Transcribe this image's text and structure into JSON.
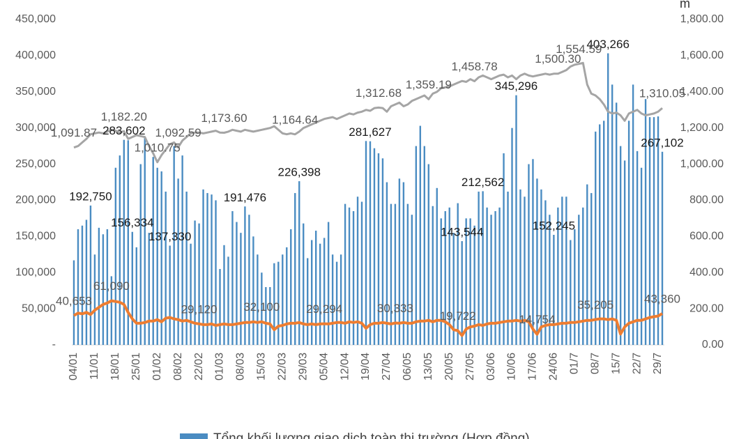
{
  "chart_data": {
    "type": "combo",
    "y2_title": "m",
    "categories": [
      "04/01",
      null,
      null,
      null,
      null,
      "11/01",
      null,
      null,
      null,
      null,
      "18/01",
      null,
      null,
      null,
      null,
      "25/01",
      null,
      null,
      null,
      null,
      "01/02",
      null,
      null,
      null,
      null,
      "08/02",
      null,
      null,
      null,
      null,
      "22/02",
      null,
      null,
      null,
      null,
      "01/03",
      null,
      null,
      null,
      null,
      "08/03",
      null,
      null,
      null,
      null,
      "15/03",
      null,
      null,
      null,
      null,
      "22/03",
      null,
      null,
      null,
      null,
      "29/03",
      null,
      null,
      null,
      null,
      "05/04",
      null,
      null,
      null,
      null,
      "12/04",
      null,
      null,
      null,
      null,
      "19/04",
      null,
      null,
      null,
      null,
      "27/04",
      null,
      null,
      null,
      null,
      "06/05",
      null,
      null,
      null,
      null,
      "13/05",
      null,
      null,
      null,
      null,
      "20/05",
      null,
      null,
      null,
      null,
      "27/05",
      null,
      null,
      null,
      null,
      "03/06",
      null,
      null,
      null,
      null,
      "10/06",
      null,
      null,
      null,
      null,
      "17/06",
      null,
      null,
      null,
      null,
      "24/06",
      null,
      null,
      null,
      null,
      "01/7",
      null,
      null,
      null,
      null,
      "08/7",
      null,
      null,
      null,
      null,
      "15/7",
      null,
      null,
      null,
      null,
      "22/7",
      null,
      null,
      null,
      null,
      "29/7",
      null
    ],
    "series": [
      {
        "name": "Tổng khối lượng giao dịch toàn thị trường (Hợp đồng)",
        "type": "bar",
        "color": "#4a8cc2",
        "values": [
          117000,
          160000,
          165000,
          173000,
          192750,
          125000,
          162000,
          153000,
          160000,
          95000,
          245000,
          262000,
          283602,
          283000,
          156334,
          135000,
          250000,
          288000,
          155000,
          260000,
          245000,
          240000,
          212000,
          137330,
          275000,
          230000,
          262000,
          212000,
          140000,
          172000,
          168000,
          215000,
          210000,
          208000,
          200000,
          105000,
          138000,
          122000,
          185000,
          170000,
          155000,
          191476,
          180000,
          150000,
          125000,
          100000,
          80000,
          80000,
          113000,
          115000,
          125000,
          135000,
          160000,
          210000,
          226398,
          168000,
          120000,
          145000,
          158000,
          140000,
          148000,
          170000,
          125000,
          115000,
          125000,
          195000,
          190000,
          185000,
          205000,
          198000,
          282000,
          281627,
          272000,
          265000,
          258000,
          225000,
          195000,
          195000,
          230000,
          225000,
          195000,
          180000,
          275000,
          303000,
          275000,
          250000,
          192000,
          217000,
          175000,
          185000,
          190000,
          155000,
          196000,
          143544,
          175000,
          175000,
          165000,
          212000,
          212562,
          190000,
          180000,
          185000,
          190000,
          265000,
          212000,
          300000,
          345296,
          215000,
          205000,
          250000,
          257000,
          230000,
          215000,
          200000,
          180000,
          152245,
          190000,
          205000,
          205000,
          145000,
          160000,
          180000,
          190000,
          222000,
          210000,
          295000,
          305000,
          310000,
          403266,
          360000,
          335000,
          275000,
          255000,
          310000,
          360000,
          268000,
          245000,
          340000,
          315000,
          315000,
          316000,
          267102
        ],
        "value_labels": [
          null,
          null,
          null,
          null,
          "192,750",
          null,
          null,
          null,
          null,
          null,
          null,
          null,
          "283,602",
          null,
          "156,334",
          null,
          null,
          null,
          null,
          null,
          null,
          null,
          null,
          "137,330",
          null,
          null,
          null,
          null,
          null,
          null,
          null,
          null,
          null,
          null,
          null,
          null,
          null,
          null,
          null,
          null,
          null,
          "191,476",
          null,
          null,
          null,
          null,
          null,
          null,
          null,
          null,
          null,
          null,
          null,
          null,
          "226,398",
          null,
          null,
          null,
          null,
          null,
          null,
          null,
          null,
          null,
          null,
          null,
          null,
          null,
          null,
          null,
          null,
          "281,627",
          null,
          null,
          null,
          null,
          null,
          null,
          null,
          null,
          null,
          null,
          null,
          null,
          null,
          null,
          null,
          null,
          null,
          null,
          null,
          null,
          null,
          "143,544",
          null,
          null,
          null,
          null,
          "212,562",
          null,
          null,
          null,
          null,
          null,
          null,
          null,
          "345,296",
          null,
          null,
          null,
          null,
          null,
          null,
          null,
          null,
          "152,245",
          null,
          null,
          null,
          null,
          null,
          null,
          null,
          null,
          null,
          null,
          null,
          null,
          "403,266",
          null,
          null,
          null,
          null,
          null,
          null,
          null,
          null,
          null,
          null,
          null,
          null,
          "267,102"
        ]
      },
      {
        "type": "line",
        "color": "#ed7d31",
        "values": [
          40653,
          44000,
          43000,
          45000,
          42000,
          48000,
          52000,
          56000,
          58000,
          61090,
          60000,
          59000,
          56000,
          45000,
          36000,
          30000,
          30000,
          31000,
          33000,
          33000,
          35000,
          32000,
          37000,
          38000,
          36000,
          35000,
          33000,
          34000,
          32000,
          30000,
          29120,
          28000,
          28000,
          29000,
          27000,
          28000,
          29000,
          28000,
          28000,
          29000,
          30000,
          31000,
          31000,
          32000,
          31000,
          32100,
          30000,
          29000,
          21000,
          26000,
          27000,
          29000,
          30000,
          30000,
          31000,
          29000,
          28000,
          29000,
          28000,
          29000,
          29294,
          29000,
          30000,
          31000,
          31000,
          30000,
          32000,
          31000,
          32000,
          30000,
          23000,
          28000,
          30000,
          30000,
          31000,
          30000,
          29000,
          30333,
          30000,
          31000,
          30000,
          30000,
          32000,
          33000,
          33000,
          34000,
          32000,
          34000,
          34000,
          32000,
          28000,
          21000,
          19722,
          13000,
          22000,
          25000,
          26000,
          28000,
          27000,
          29000,
          30000,
          30000,
          31000,
          32000,
          33000,
          33000,
          34000,
          33000,
          34000,
          32000,
          22000,
          14754,
          25000,
          27000,
          28000,
          28000,
          29000,
          30000,
          30000,
          31000,
          31000,
          32000,
          33000,
          34000,
          34000,
          35205,
          36000,
          36000,
          35000,
          36000,
          34000,
          15000,
          25000,
          30000,
          32000,
          34000,
          34000,
          36000,
          38000,
          39000,
          40000,
          43360
        ],
        "value_labels": [
          "40,653",
          null,
          null,
          null,
          null,
          null,
          null,
          null,
          null,
          "61,090",
          null,
          null,
          null,
          null,
          null,
          null,
          null,
          null,
          null,
          null,
          null,
          null,
          null,
          null,
          null,
          null,
          null,
          null,
          null,
          null,
          "29,120",
          null,
          null,
          null,
          null,
          null,
          null,
          null,
          null,
          null,
          null,
          null,
          null,
          null,
          null,
          "32,100",
          null,
          null,
          null,
          null,
          null,
          null,
          null,
          null,
          null,
          null,
          null,
          null,
          null,
          null,
          "29,294",
          null,
          null,
          null,
          null,
          null,
          null,
          null,
          null,
          null,
          null,
          null,
          null,
          null,
          null,
          null,
          null,
          "30,333",
          null,
          null,
          null,
          null,
          null,
          null,
          null,
          null,
          null,
          null,
          null,
          null,
          null,
          null,
          "19,722",
          null,
          null,
          null,
          null,
          null,
          null,
          null,
          null,
          null,
          null,
          null,
          null,
          null,
          null,
          null,
          null,
          null,
          null,
          "14,754",
          null,
          null,
          null,
          null,
          null,
          null,
          null,
          null,
          null,
          null,
          null,
          null,
          null,
          "35,205",
          null,
          null,
          null,
          null,
          null,
          null,
          null,
          null,
          null,
          null,
          null,
          null,
          null,
          null,
          null,
          "43,360"
        ]
      },
      {
        "type": "line",
        "axis": "y2",
        "color": "#a5a5a5",
        "values": [
          1091.87,
          1100,
          1120,
          1140,
          1165,
          1170,
          1175,
          1170,
          1180,
          1190,
          1185,
          1175,
          1182.2,
          1140,
          1150,
          1160,
          1155,
          1150,
          1100,
          1060,
          1010.75,
          1050,
          1080,
          1110,
          1120,
          1092.59,
          1130,
          1150,
          1170,
          1175,
          1175,
          1170,
          1175,
          1180,
          1185,
          1175,
          1173.6,
          1180,
          1190,
          1185,
          1180,
          1190,
          1185,
          1180,
          1185,
          1190,
          1195,
          1200,
          1210,
          1190,
          1170,
          1165,
          1170,
          1164.64,
          1180,
          1200,
          1210,
          1220,
          1230,
          1240,
          1250,
          1255,
          1260,
          1250,
          1260,
          1270,
          1280,
          1275,
          1285,
          1290,
          1300,
          1295,
          1310,
          1312.68,
          1310,
          1290,
          1320,
          1330,
          1340,
          1320,
          1330,
          1350,
          1360,
          1370,
          1380,
          1359.19,
          1390,
          1400,
          1420,
          1425,
          1430,
          1440,
          1450,
          1460,
          1455,
          1470,
          1458.78,
          1480,
          1490,
          1480,
          1470,
          1480,
          1490,
          1495,
          1480,
          1490,
          1470,
          1490,
          1500,
          1490,
          1485,
          1490,
          1495,
          1500,
          1495,
          1500,
          1500.3,
          1510,
          1520,
          1540,
          1550,
          1554.59,
          1560,
          1440,
          1390,
          1380,
          1360,
          1330,
          1290,
          1280,
          1285,
          1270,
          1240,
          1280,
          1290,
          1300,
          1280,
          1270,
          1275,
          1280,
          1290,
          1310.05
        ],
        "value_labels": [
          "1,091.87",
          null,
          null,
          null,
          null,
          null,
          null,
          null,
          null,
          null,
          null,
          null,
          "1,182.20",
          null,
          null,
          null,
          null,
          null,
          null,
          null,
          "1,010.75",
          null,
          null,
          null,
          null,
          "1,092.59",
          null,
          null,
          null,
          null,
          null,
          null,
          null,
          null,
          null,
          null,
          "1,173.60",
          null,
          null,
          null,
          null,
          null,
          null,
          null,
          null,
          null,
          null,
          null,
          null,
          null,
          null,
          null,
          null,
          "1,164.64",
          null,
          null,
          null,
          null,
          null,
          null,
          null,
          null,
          null,
          null,
          null,
          null,
          null,
          null,
          null,
          null,
          null,
          null,
          null,
          "1,312.68",
          null,
          null,
          null,
          null,
          null,
          null,
          null,
          null,
          null,
          null,
          null,
          "1,359.19",
          null,
          null,
          null,
          null,
          null,
          null,
          null,
          null,
          null,
          null,
          "1,458.78",
          null,
          null,
          null,
          null,
          null,
          null,
          null,
          null,
          null,
          null,
          null,
          null,
          null,
          null,
          null,
          null,
          null,
          null,
          null,
          "1,500.30",
          null,
          null,
          null,
          null,
          "1,554.59",
          null,
          null,
          null,
          null,
          null,
          null,
          null,
          null,
          null,
          null,
          null,
          null,
          null,
          null,
          null,
          null,
          null,
          null,
          null,
          "1,310.05"
        ]
      }
    ],
    "ylim": [
      0,
      450000
    ],
    "yticks": [
      {
        "value": 0,
        "label": "-"
      },
      {
        "value": 50000,
        "label": "50,000"
      },
      {
        "value": 100000,
        "label": "100,000"
      },
      {
        "value": 150000,
        "label": "150,000"
      },
      {
        "value": 200000,
        "label": "200,000"
      },
      {
        "value": 250000,
        "label": "250,000"
      },
      {
        "value": 300000,
        "label": "300,000"
      },
      {
        "value": 350000,
        "label": "350,000"
      },
      {
        "value": 400000,
        "label": "400,000"
      },
      {
        "value": 450000,
        "label": "450,000"
      }
    ],
    "y2lim": [
      0,
      1800
    ],
    "y2ticks": [
      {
        "value": 0,
        "label": "0.00"
      },
      {
        "value": 200,
        "label": "200.00"
      },
      {
        "value": 400,
        "label": "400.00"
      },
      {
        "value": 600,
        "label": "600.00"
      },
      {
        "value": 800,
        "label": "800.00"
      },
      {
        "value": 1000,
        "label": "1,000.00"
      },
      {
        "value": 1200,
        "label": "1,200.00"
      },
      {
        "value": 1400,
        "label": "1,400.00"
      },
      {
        "value": 1600,
        "label": "1,600.00"
      },
      {
        "value": 1800,
        "label": "1,800.00"
      }
    ],
    "grid": false
  }
}
